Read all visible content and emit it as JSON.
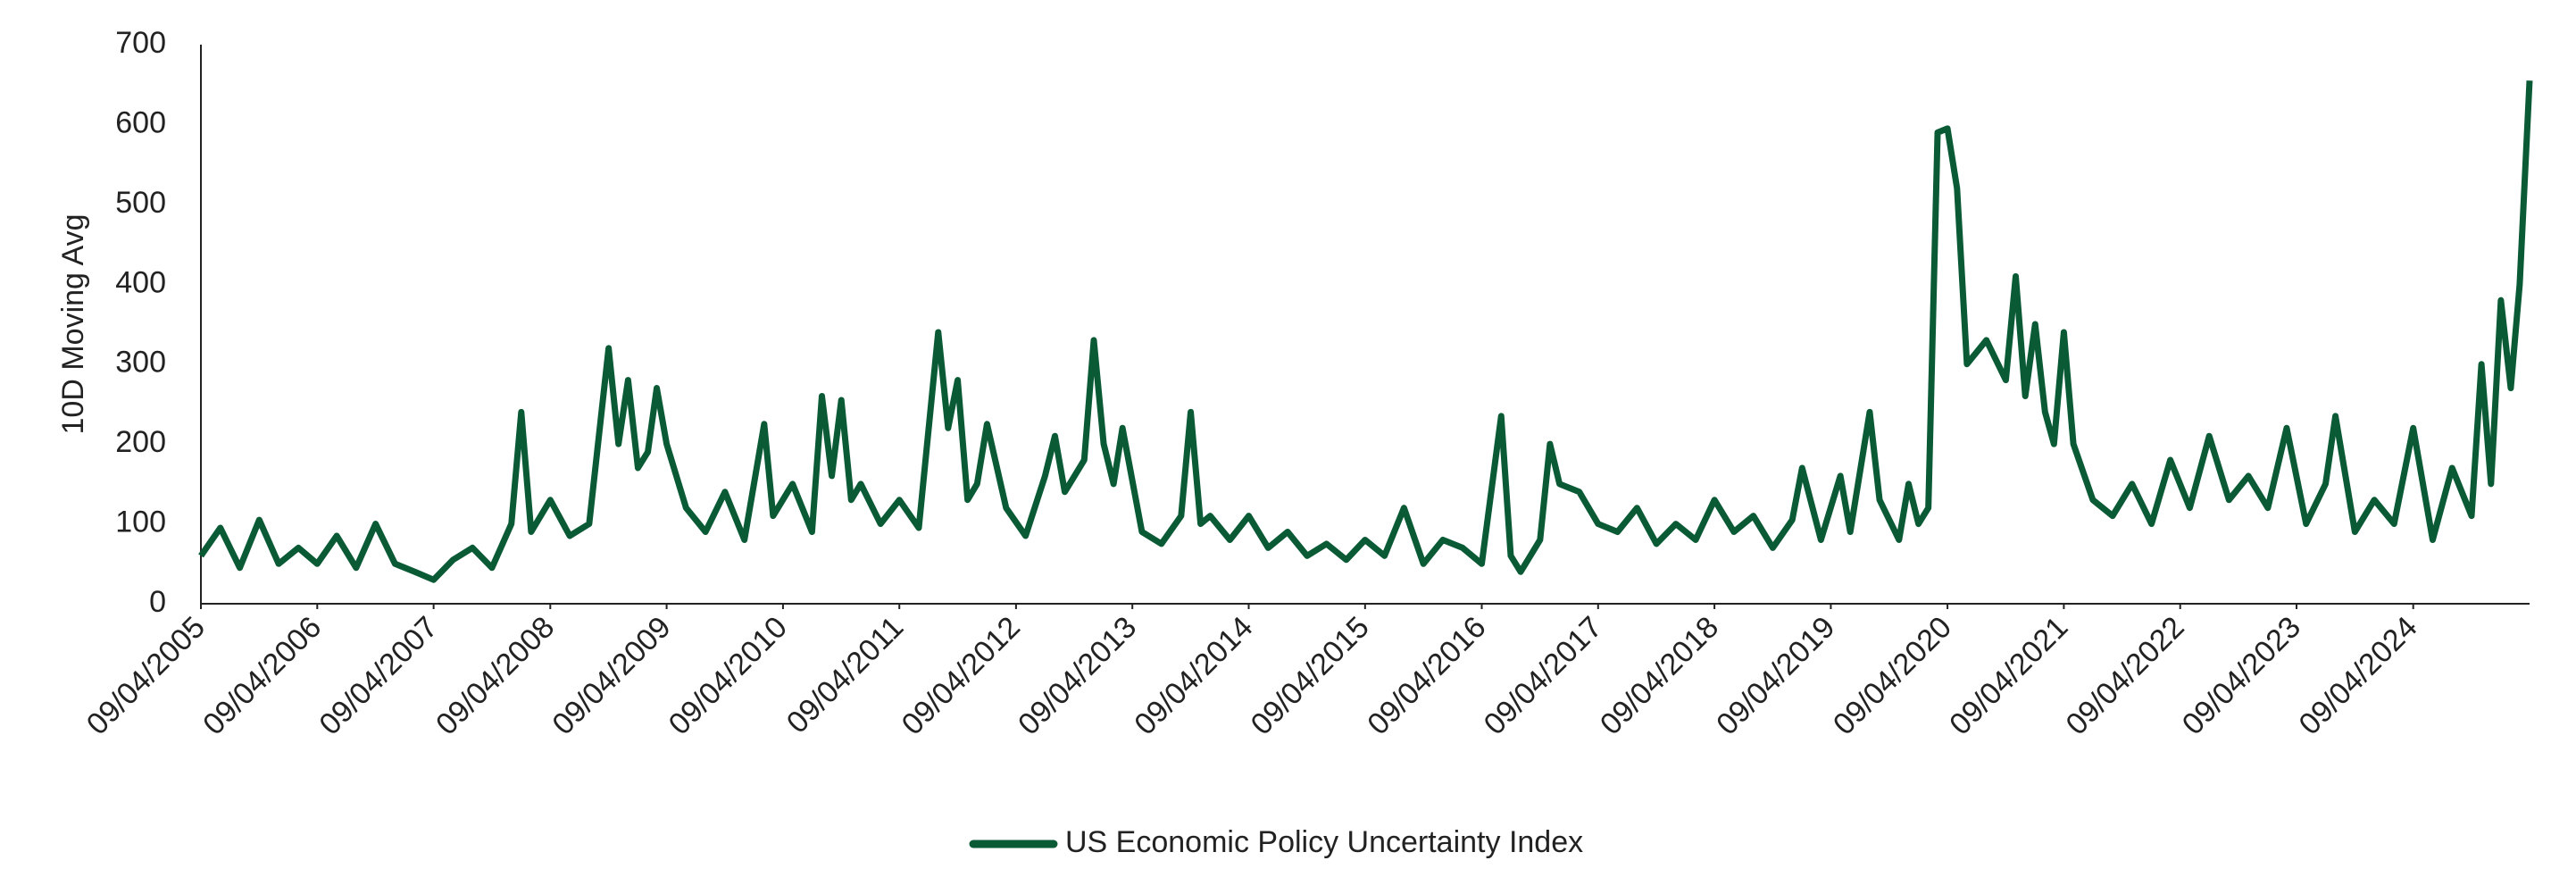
{
  "chart_data": {
    "type": "line",
    "y_label": "10D Moving Avg",
    "x": [
      "09/04/2005",
      "09/06/2005",
      "09/08/2005",
      "09/10/2005",
      "09/12/2005",
      "09/02/2006",
      "09/04/2006",
      "09/06/2006",
      "09/08/2006",
      "09/10/2006",
      "09/12/2006",
      "09/02/2007",
      "09/04/2007",
      "09/06/2007",
      "09/08/2007",
      "09/10/2007",
      "09/12/2007",
      "09/01/2008",
      "09/02/2008",
      "09/04/2008",
      "09/06/2008",
      "09/08/2008",
      "09/10/2008",
      "09/11/2008",
      "09/12/2008",
      "09/01/2009",
      "09/02/2009",
      "09/03/2009",
      "09/04/2009",
      "09/06/2009",
      "09/08/2009",
      "09/10/2009",
      "09/12/2009",
      "09/02/2010",
      "09/03/2010",
      "09/05/2010",
      "09/07/2010",
      "09/08/2010",
      "09/09/2010",
      "09/10/2010",
      "09/11/2010",
      "09/12/2010",
      "09/02/2011",
      "09/04/2011",
      "09/06/2011",
      "09/08/2011",
      "09/09/2011",
      "09/10/2011",
      "09/11/2011",
      "09/12/2011",
      "09/01/2012",
      "09/03/2012",
      "09/05/2012",
      "09/07/2012",
      "09/08/2012",
      "09/09/2012",
      "09/11/2012",
      "09/12/2012",
      "09/01/2013",
      "09/02/2013",
      "09/03/2013",
      "09/05/2013",
      "09/07/2013",
      "09/09/2013",
      "09/10/2013",
      "09/11/2013",
      "09/12/2013",
      "09/02/2014",
      "09/04/2014",
      "09/06/2014",
      "09/08/2014",
      "09/10/2014",
      "09/12/2014",
      "09/02/2015",
      "09/04/2015",
      "09/06/2015",
      "09/08/2015",
      "09/10/2015",
      "09/12/2015",
      "09/02/2016",
      "09/04/2016",
      "09/06/2016",
      "09/07/2016",
      "09/08/2016",
      "09/10/2016",
      "09/11/2016",
      "09/12/2016",
      "09/02/2017",
      "09/04/2017",
      "09/06/2017",
      "09/08/2017",
      "09/10/2017",
      "09/12/2017",
      "09/02/2018",
      "09/04/2018",
      "09/06/2018",
      "09/08/2018",
      "09/10/2018",
      "09/12/2018",
      "09/01/2019",
      "09/03/2019",
      "09/05/2019",
      "09/06/2019",
      "09/08/2019",
      "09/09/2019",
      "09/11/2019",
      "09/12/2019",
      "09/01/2020",
      "09/02/2020",
      "09/03/2020",
      "09/04/2020",
      "09/05/2020",
      "09/06/2020",
      "09/08/2020",
      "09/10/2020",
      "09/11/2020",
      "09/12/2020",
      "09/01/2021",
      "09/02/2021",
      "09/03/2021",
      "09/04/2021",
      "09/05/2021",
      "09/07/2021",
      "09/09/2021",
      "09/11/2021",
      "09/01/2022",
      "09/03/2022",
      "09/05/2022",
      "09/07/2022",
      "09/09/2022",
      "09/11/2022",
      "09/01/2023",
      "09/03/2023",
      "09/05/2023",
      "09/07/2023",
      "09/08/2023",
      "09/10/2023",
      "09/12/2023",
      "09/02/2024",
      "09/04/2024",
      "09/06/2024",
      "09/08/2024",
      "09/10/2024",
      "09/11/2024",
      "09/12/2024",
      "09/01/2025",
      "09/02/2025",
      "09/03/2025",
      "09/04/2025"
    ],
    "series": [
      {
        "name": "US Economic Policy Uncertainty Index",
        "color": "#0b5a36",
        "values": [
          60,
          95,
          45,
          105,
          50,
          70,
          50,
          85,
          45,
          100,
          50,
          40,
          30,
          55,
          70,
          45,
          100,
          240,
          90,
          130,
          85,
          100,
          320,
          200,
          280,
          170,
          190,
          270,
          200,
          120,
          90,
          140,
          80,
          225,
          110,
          150,
          90,
          260,
          160,
          255,
          130,
          150,
          100,
          130,
          95,
          340,
          220,
          280,
          130,
          150,
          225,
          120,
          85,
          160,
          210,
          140,
          180,
          330,
          200,
          150,
          220,
          90,
          75,
          110,
          240,
          100,
          110,
          80,
          110,
          70,
          90,
          60,
          75,
          55,
          80,
          60,
          120,
          50,
          80,
          70,
          50,
          235,
          60,
          40,
          80,
          200,
          150,
          140,
          100,
          90,
          120,
          75,
          100,
          80,
          130,
          90,
          110,
          70,
          105,
          170,
          80,
          160,
          90,
          240,
          130,
          80,
          150,
          100,
          120,
          590,
          595,
          520,
          300,
          330,
          280,
          410,
          260,
          350,
          240,
          200,
          340,
          200,
          130,
          110,
          150,
          100,
          180,
          120,
          210,
          130,
          160,
          120,
          220,
          100,
          150,
          235,
          90,
          130,
          100,
          220,
          80,
          170,
          110,
          300,
          150,
          380,
          270,
          400,
          655
        ]
      }
    ],
    "xlim": [
      "09/04/2005",
      "09/04/2025"
    ],
    "xticks": [
      "09/04/2005",
      "09/04/2006",
      "09/04/2007",
      "09/04/2008",
      "09/04/2009",
      "09/04/2010",
      "09/04/2011",
      "09/04/2012",
      "09/04/2013",
      "09/04/2014",
      "09/04/2015",
      "09/04/2016",
      "09/04/2017",
      "09/04/2018",
      "09/04/2019",
      "09/04/2020",
      "09/04/2021",
      "09/04/2022",
      "09/04/2023",
      "09/04/2024"
    ],
    "ylim": [
      0,
      700
    ],
    "yticks": [
      0,
      100,
      200,
      300,
      400,
      500,
      600,
      700
    ],
    "grid": false,
    "legend": "bottom"
  }
}
